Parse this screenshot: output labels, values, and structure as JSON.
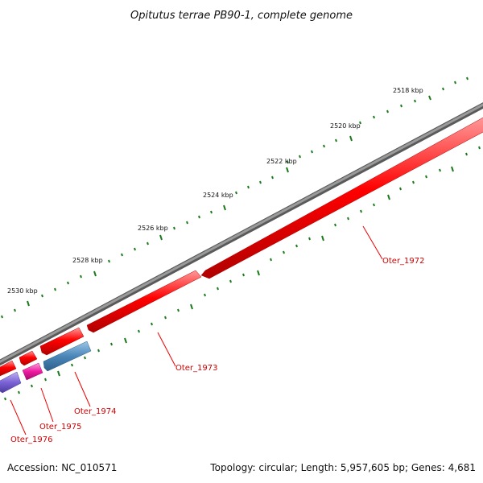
{
  "title": "Opitutus terrae PB90-1, complete genome",
  "accession": "Accession: NC_010571",
  "summary": "Topology: circular; Length: 5,957,605 bp; Genes: 4,681",
  "tick_labels": [
    "2518 kbp",
    "2520 kbp",
    "2522 kbp",
    "2524 kbp",
    "2526 kbp",
    "2528 kbp",
    "2530 kbp"
  ],
  "genes": [
    {
      "name": "Oter_1972",
      "color": "#ee0000"
    },
    {
      "name": "Oter_1973",
      "color": "#ee0000"
    },
    {
      "name": "Oter_1974",
      "color": "#4a86b8"
    },
    {
      "name": "Oter_1975",
      "color": "#ee1aa0"
    },
    {
      "name": "Oter_1976",
      "color": "#7b62d6"
    }
  ],
  "colors": {
    "backbone": "#808080",
    "tick_marks": "#1a7a1a",
    "label_line": "#ee0000"
  }
}
